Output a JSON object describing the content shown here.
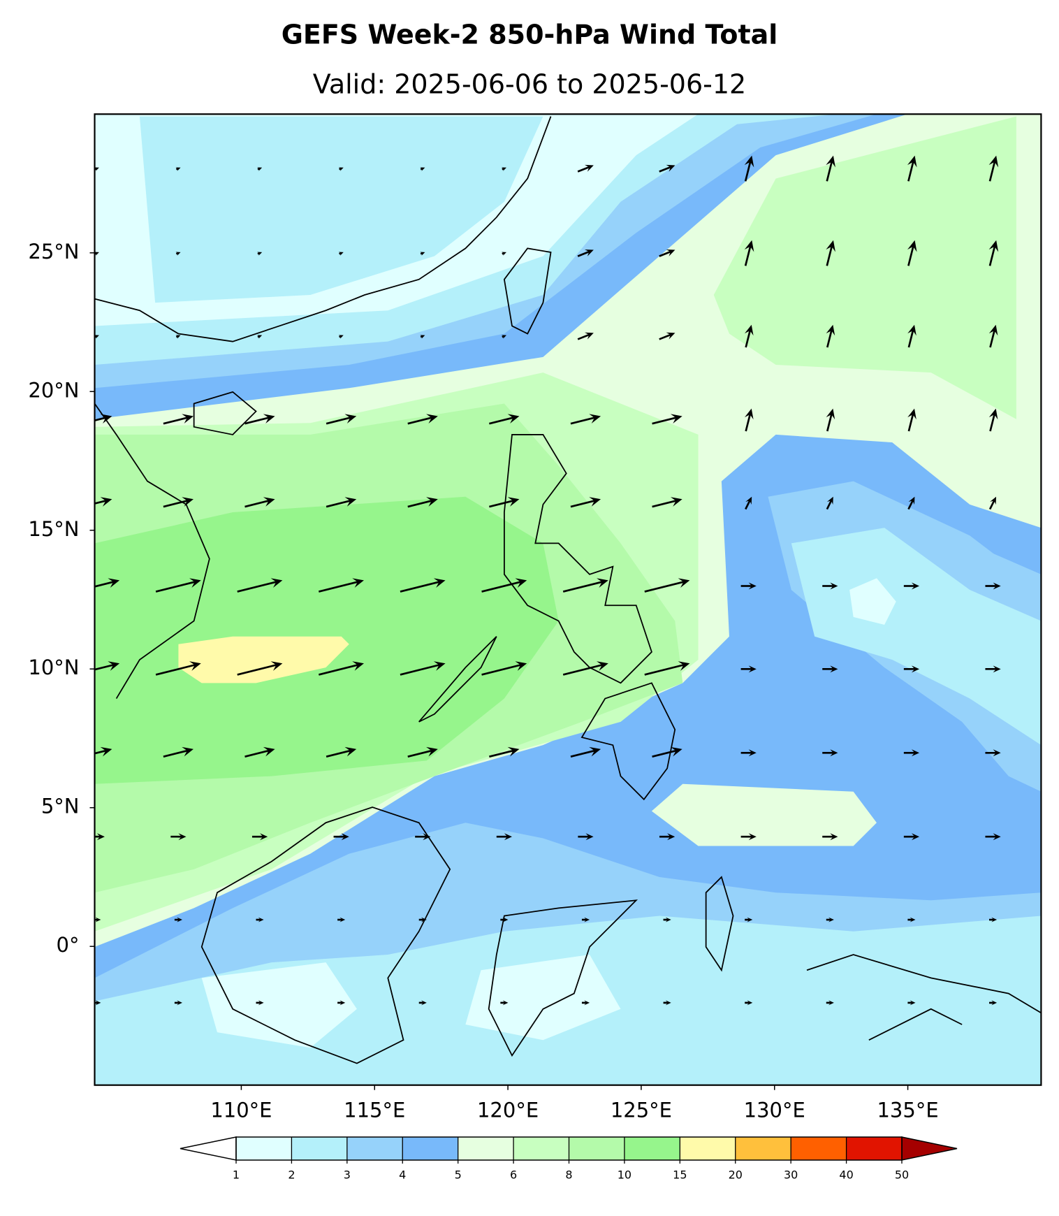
{
  "title": "GEFS Week-2 850-hPa Wind Total",
  "subtitle": "Valid: 2025-06-06 to 2025-06-12",
  "map": {
    "lon_range": [
      104.5,
      140
    ],
    "lat_range": [
      -5,
      30
    ],
    "lon_ticks": [
      {
        "value": 110,
        "label": "110°E"
      },
      {
        "value": 115,
        "label": "115°E"
      },
      {
        "value": 120,
        "label": "120°E"
      },
      {
        "value": 125,
        "label": "125°E"
      },
      {
        "value": 130,
        "label": "130°E"
      },
      {
        "value": 135,
        "label": "135°E"
      }
    ],
    "lat_ticks": [
      {
        "value": 0,
        "label": "0°"
      },
      {
        "value": 5,
        "label": "5°N"
      },
      {
        "value": 10,
        "label": "10°N"
      },
      {
        "value": 15,
        "label": "15°N"
      },
      {
        "value": 20,
        "label": "20°N"
      },
      {
        "value": 25,
        "label": "25°N"
      }
    ]
  },
  "colorbar": {
    "levels": [
      1,
      2,
      3,
      4,
      5,
      6,
      8,
      10,
      15,
      20,
      30,
      40,
      50
    ],
    "colors": [
      "#e0ffff",
      "#b4f0fa",
      "#96d2fa",
      "#78b9fa",
      "#e6ffe0",
      "#c8ffc0",
      "#b4faaa",
      "#96f58c",
      "#fffaaa",
      "#ffc03c",
      "#ff6000",
      "#e11400"
    ],
    "under_color": "#ffffff",
    "over_color": "#a50000"
  }
}
